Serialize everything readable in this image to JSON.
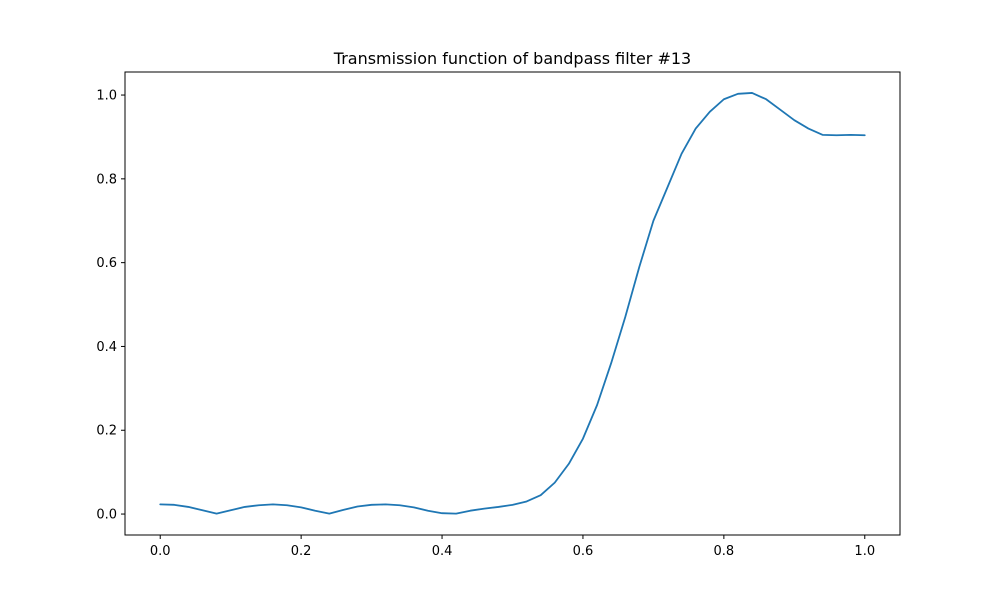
{
  "chart_data": {
    "type": "line",
    "title": "Transmission function of bandpass filter #13",
    "xlabel": "",
    "ylabel": "",
    "xlim": [
      -0.05,
      1.05
    ],
    "ylim": [
      -0.05,
      1.055
    ],
    "xticks": [
      0.0,
      0.2,
      0.4,
      0.6,
      0.8,
      1.0
    ],
    "xtick_labels": [
      "0.0",
      "0.2",
      "0.4",
      "0.6",
      "0.8",
      "1.0"
    ],
    "yticks": [
      0.0,
      0.2,
      0.4,
      0.6,
      0.8,
      1.0
    ],
    "ytick_labels": [
      "0.0",
      "0.2",
      "0.4",
      "0.6",
      "0.8",
      "1.0"
    ],
    "grid": false,
    "series": [
      {
        "color": "#1f77b4",
        "x": [
          0.0,
          0.02,
          0.04,
          0.06,
          0.08,
          0.1,
          0.12,
          0.14,
          0.16,
          0.18,
          0.2,
          0.22,
          0.24,
          0.26,
          0.28,
          0.3,
          0.32,
          0.34,
          0.36,
          0.38,
          0.4,
          0.42,
          0.44,
          0.46,
          0.48,
          0.5,
          0.52,
          0.54,
          0.56,
          0.58,
          0.6,
          0.62,
          0.64,
          0.66,
          0.68,
          0.7,
          0.72,
          0.74,
          0.76,
          0.78,
          0.8,
          0.82,
          0.84,
          0.86,
          0.88,
          0.9,
          0.92,
          0.94,
          0.96,
          0.98,
          1.0
        ],
        "y": [
          0.023,
          0.022,
          0.017,
          0.009,
          0.001,
          0.009,
          0.017,
          0.021,
          0.023,
          0.021,
          0.016,
          0.008,
          0.001,
          0.01,
          0.018,
          0.022,
          0.023,
          0.021,
          0.016,
          0.008,
          0.002,
          0.001,
          0.008,
          0.013,
          0.017,
          0.022,
          0.03,
          0.045,
          0.075,
          0.12,
          0.18,
          0.26,
          0.36,
          0.47,
          0.59,
          0.7,
          0.78,
          0.86,
          0.92,
          0.96,
          0.99,
          1.003,
          1.005,
          0.99,
          0.965,
          0.94,
          0.92,
          0.905,
          0.904,
          0.905,
          0.904
        ]
      }
    ]
  }
}
